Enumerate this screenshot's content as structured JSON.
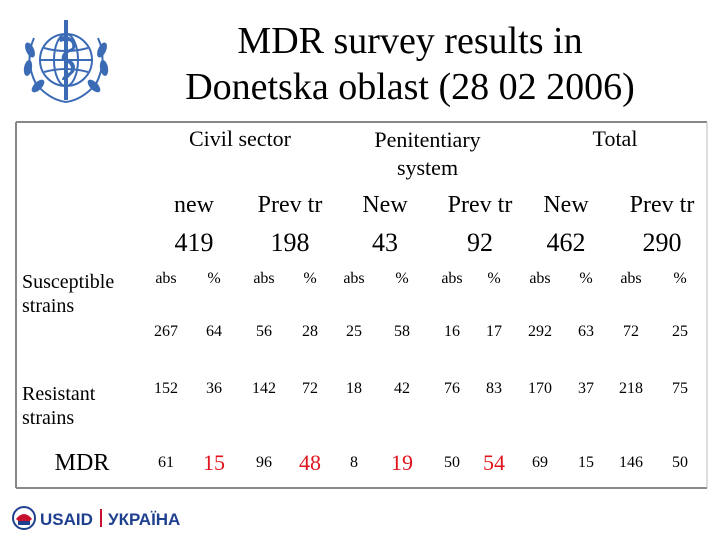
{
  "title_line1": "MDR survey results in",
  "title_line2": "Donetska oblast (28 02 2006)",
  "footer": {
    "usaid": "USAID",
    "ukraine": "УКРАЇНА"
  },
  "colors": {
    "highlight": "#e0141e",
    "usaid_blue": "#1f3f8f",
    "usaid_red": "#c8102e",
    "who_blue": "#3b6bb5"
  },
  "groups": [
    {
      "label_line1": "Civil sector",
      "label_line2": ""
    },
    {
      "label_line1": "Penitentiary",
      "label_line2": "system"
    },
    {
      "label_line1": "Total",
      "label_line2": ""
    }
  ],
  "subheaders": [
    "new",
    "Prev tr",
    "New",
    "Prev tr",
    "New",
    "Prev tr"
  ],
  "counts": [
    "419",
    "198",
    "43",
    "92",
    "462",
    "290"
  ],
  "col_units": [
    "abs",
    "%",
    "abs",
    "%",
    "abs",
    "%",
    "abs",
    "%",
    "abs",
    "%",
    "abs",
    "%"
  ],
  "rows": {
    "susceptible": {
      "label_line1": "Susceptible",
      "label_line2": "strains",
      "values": [
        "267",
        "64",
        "56",
        "28",
        "25",
        "58",
        "16",
        "17",
        "292",
        "63",
        "72",
        "25"
      ]
    },
    "resistant": {
      "label_line1": "Resistant",
      "label_line2": "strains",
      "values": [
        "152",
        "36",
        "142",
        "72",
        "18",
        "42",
        "76",
        "83",
        "170",
        "37",
        "218",
        "75"
      ]
    },
    "mdr": {
      "label": "MDR",
      "values": [
        "61",
        "15",
        "96",
        "48",
        "8",
        "19",
        "50",
        "54",
        "69",
        "15",
        "146",
        "50"
      ],
      "highlighted": [
        false,
        true,
        false,
        true,
        false,
        true,
        false,
        true,
        false,
        false,
        false,
        false
      ]
    }
  }
}
